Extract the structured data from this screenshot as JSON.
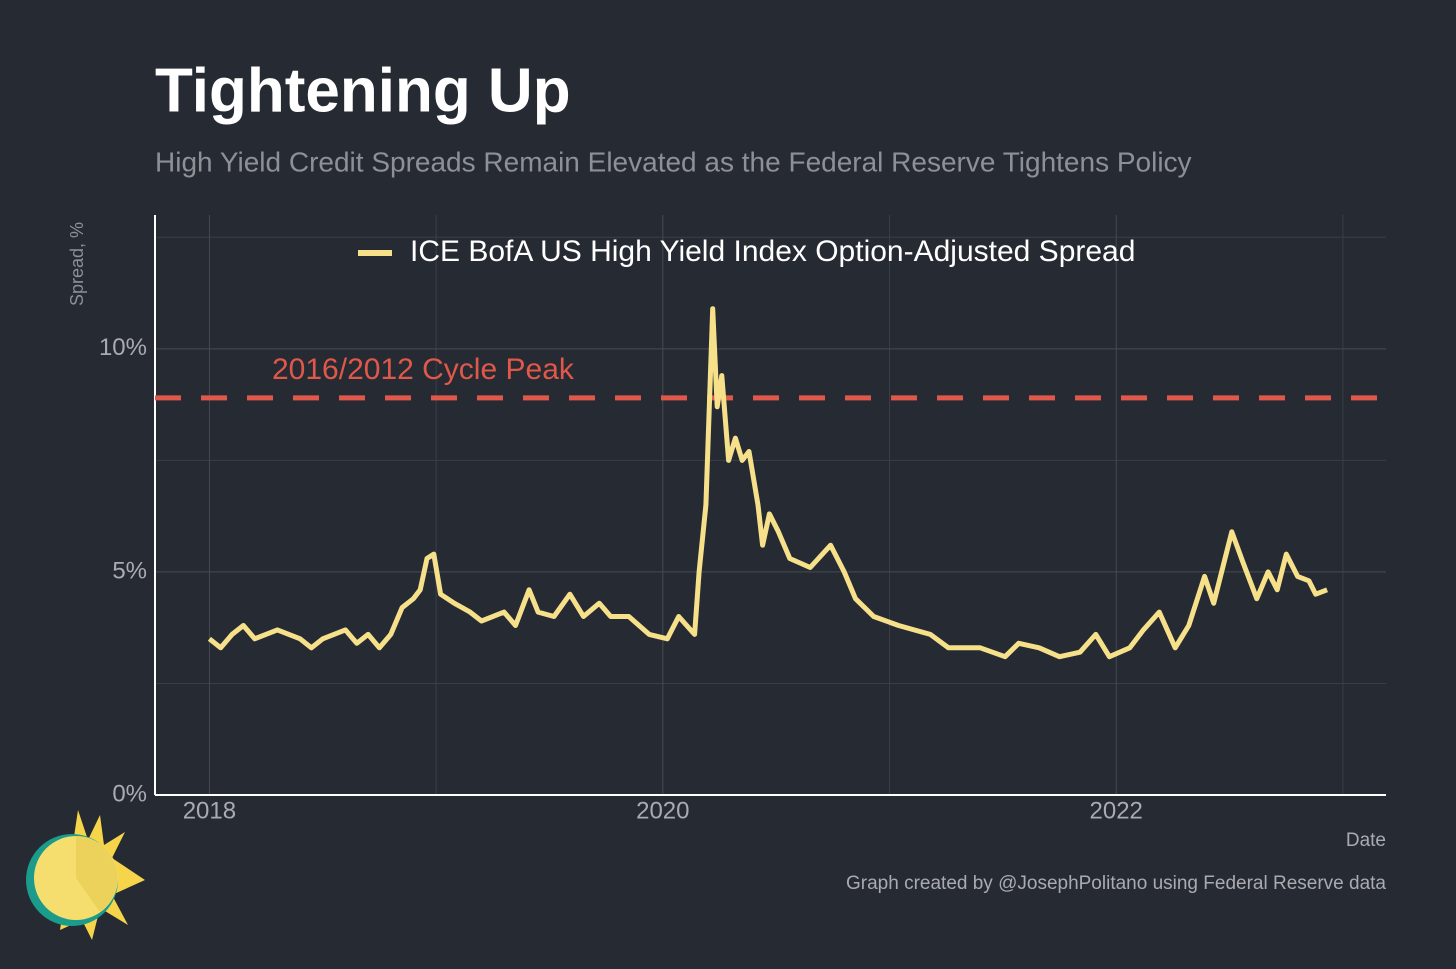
{
  "chart_data": {
    "type": "line",
    "title": "Tightening Up",
    "subtitle": "High Yield Credit Spreads Remain Elevated as the Federal Reserve Tightens Policy",
    "y_label": "Spread, %",
    "x_label": "Date",
    "caption": "Graph created by @JosephPolitano using Federal Reserve data",
    "x": [
      2018.0,
      2018.05,
      2018.1,
      2018.15,
      2018.2,
      2018.3,
      2018.4,
      2018.45,
      2018.5,
      2018.6,
      2018.65,
      2018.7,
      2018.75,
      2018.8,
      2018.85,
      2018.9,
      2018.93,
      2018.96,
      2018.99,
      2019.02,
      2019.08,
      2019.15,
      2019.2,
      2019.3,
      2019.35,
      2019.41,
      2019.45,
      2019.52,
      2019.59,
      2019.65,
      2019.72,
      2019.77,
      2019.85,
      2019.94,
      2020.02,
      2020.07,
      2020.14,
      2020.16,
      2020.19,
      2020.22,
      2020.24,
      2020.26,
      2020.29,
      2020.32,
      2020.35,
      2020.38,
      2020.42,
      2020.44,
      2020.47,
      2020.51,
      2020.56,
      2020.65,
      2020.74,
      2020.8,
      2020.85,
      2020.93,
      2021.04,
      2021.18,
      2021.26,
      2021.4,
      2021.51,
      2021.57,
      2021.66,
      2021.75,
      2021.84,
      2021.91,
      2021.97,
      2022.06,
      2022.12,
      2022.19,
      2022.26,
      2022.32,
      2022.39,
      2022.43,
      2022.51,
      2022.56,
      2022.62,
      2022.67,
      2022.71,
      2022.75,
      2022.8,
      2022.85,
      2022.88,
      2022.93
    ],
    "series": [
      {
        "name": "ICE BofA US High Yield Index Option-Adjusted Spread",
        "color": "#f7e08a",
        "values": [
          3.5,
          3.3,
          3.6,
          3.8,
          3.5,
          3.7,
          3.5,
          3.3,
          3.5,
          3.7,
          3.4,
          3.6,
          3.3,
          3.6,
          4.2,
          4.4,
          4.6,
          5.3,
          5.4,
          4.5,
          4.3,
          4.1,
          3.9,
          4.1,
          3.8,
          4.6,
          4.1,
          4.0,
          4.5,
          4.0,
          4.3,
          4.0,
          4.0,
          3.6,
          3.5,
          4.0,
          3.6,
          5.0,
          6.5,
          10.9,
          8.7,
          9.4,
          7.5,
          8.0,
          7.5,
          7.7,
          6.5,
          5.6,
          6.3,
          5.9,
          5.3,
          5.1,
          5.6,
          5.0,
          4.4,
          4.0,
          3.8,
          3.6,
          3.3,
          3.3,
          3.1,
          3.4,
          3.3,
          3.1,
          3.2,
          3.6,
          3.1,
          3.3,
          3.7,
          4.1,
          3.3,
          3.8,
          4.9,
          4.3,
          5.9,
          5.2,
          4.4,
          5.0,
          4.6,
          5.4,
          4.9,
          4.8,
          4.5,
          4.6
        ]
      }
    ],
    "reference_line": {
      "value": 8.9,
      "label": "2016/2012 Cycle Peak",
      "color": "#e0584a"
    },
    "xlim": [
      2017.76,
      2023.19
    ],
    "ylim": [
      0,
      13
    ],
    "xticks": [
      2018,
      2020,
      2022
    ],
    "xminor": [
      2019,
      2021,
      2023
    ],
    "yticks": [
      {
        "value": 0,
        "label": "0%"
      },
      {
        "value": 5,
        "label": "5%"
      },
      {
        "value": 10,
        "label": "10%"
      }
    ],
    "yminor": [
      2.5,
      7.5,
      12.5
    ],
    "grid": true,
    "legend": "top"
  }
}
